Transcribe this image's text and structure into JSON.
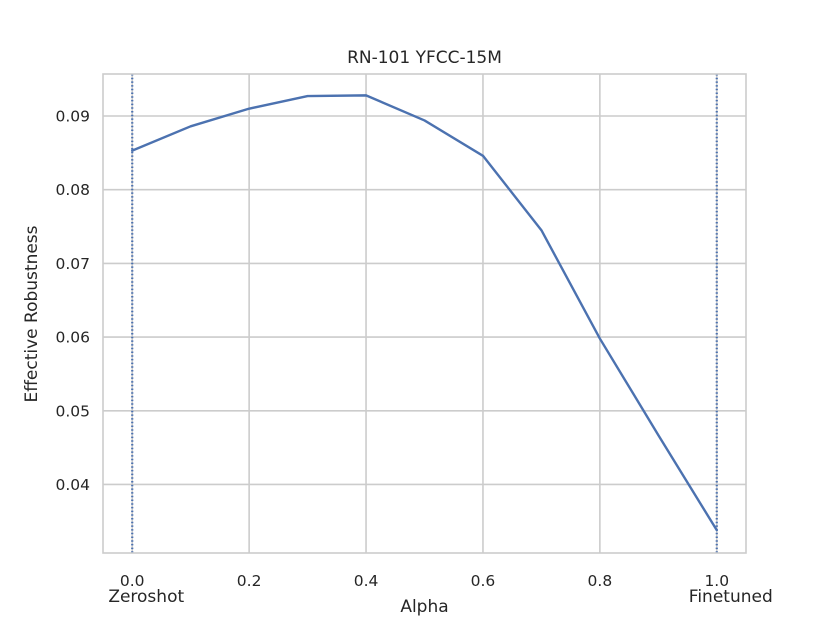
{
  "chart_data": {
    "type": "line",
    "title": "RN-101 YFCC-15M",
    "xlabel": "Alpha",
    "ylabel": "Effective Robustness",
    "xlim": [
      -0.05,
      1.05
    ],
    "ylim": [
      0.0307,
      0.0957
    ],
    "xticks": [
      0.0,
      0.2,
      0.4,
      0.6,
      0.8,
      1.0
    ],
    "xtick_labels": [
      "0.0",
      "0.2",
      "0.4",
      "0.6",
      "0.8",
      "1.0"
    ],
    "yticks": [
      0.04,
      0.05,
      0.06,
      0.07,
      0.08,
      0.09
    ],
    "ytick_labels": [
      "0.04",
      "0.05",
      "0.06",
      "0.07",
      "0.08",
      "0.09"
    ],
    "grid": true,
    "series": [
      {
        "color": "#4c72b0",
        "x": [
          0.0,
          0.1,
          0.2,
          0.3,
          0.4,
          0.5,
          0.6,
          0.7,
          0.8,
          0.9,
          1.0
        ],
        "y": [
          0.0853,
          0.0886,
          0.091,
          0.0927,
          0.0928,
          0.0894,
          0.0846,
          0.0745,
          0.0598,
          0.0467,
          0.0338
        ]
      }
    ],
    "vlines": [
      {
        "x": 0.0,
        "style": "dotted",
        "color": "#4c72b0"
      },
      {
        "x": 1.0,
        "style": "dotted",
        "color": "#4c72b0"
      }
    ],
    "annotations": [
      {
        "x": 0.0,
        "text": "Zeroshot"
      },
      {
        "x": 1.0,
        "text": "Finetuned"
      }
    ]
  }
}
